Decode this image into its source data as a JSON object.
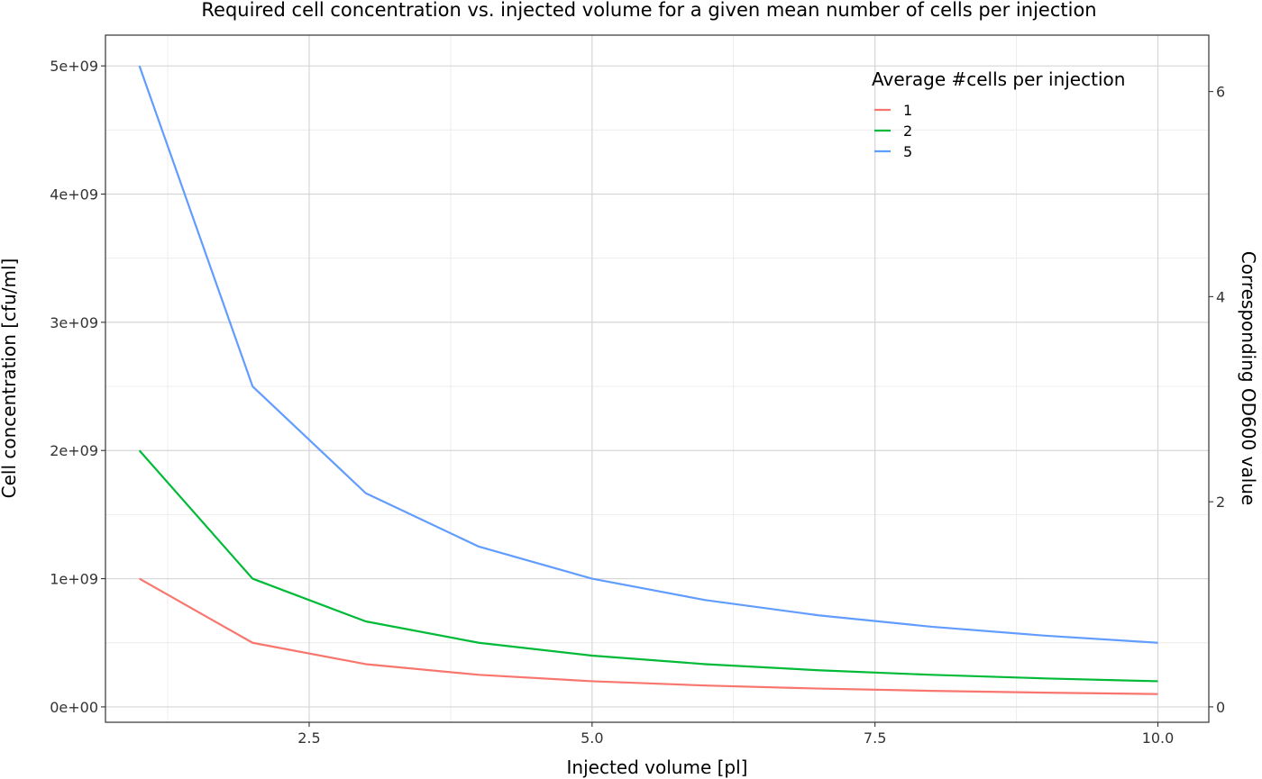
{
  "chart_data": {
    "type": "line",
    "title": "Required cell concentration vs. injected volume for a given mean number of cells per injection",
    "xlabel": "Injected volume [pl]",
    "ylabel": "Cell concentration [cfu/ml]",
    "y2label": "Corresponding OD600 value",
    "x": [
      1,
      2,
      3,
      4,
      5,
      6,
      7,
      8,
      9,
      10
    ],
    "xlim": [
      0.7,
      10.45
    ],
    "ylim": [
      -120000000.0,
      5240000000.0
    ],
    "y2lim": [
      -0.15,
      6.55
    ],
    "x_ticks": [
      2.5,
      5.0,
      7.5,
      10.0
    ],
    "x_tick_labels": [
      "2.5",
      "5.0",
      "7.5",
      "10.0"
    ],
    "y_ticks": [
      0,
      1000000000.0,
      2000000000.0,
      3000000000.0,
      4000000000.0,
      5000000000.0
    ],
    "y_tick_labels": [
      "0e+00",
      "1e+09",
      "2e+09",
      "3e+09",
      "4e+09",
      "5e+09"
    ],
    "y2_ticks": [
      0,
      2,
      4,
      6
    ],
    "y2_tick_labels": [
      "0",
      "2",
      "4",
      "6"
    ],
    "grid": true,
    "legend_title": "Average #cells per injection",
    "legend_position": "top-right inside",
    "series": [
      {
        "name": "1",
        "color": "#F8766D",
        "values": [
          1000000000.0,
          500000000.0,
          333300000.0,
          250000000.0,
          200000000.0,
          166700000.0,
          142900000.0,
          125000000.0,
          111100000.0,
          100000000.0
        ]
      },
      {
        "name": "2",
        "color": "#00BA38",
        "values": [
          2000000000.0,
          1000000000.0,
          666700000.0,
          500000000.0,
          400000000.0,
          333300000.0,
          285700000.0,
          250000000.0,
          222200000.0,
          200000000.0
        ]
      },
      {
        "name": "5",
        "color": "#619CFF",
        "values": [
          5000000000.0,
          2500000000.0,
          1667000000.0,
          1250000000.0,
          1000000000.0,
          833300000.0,
          714300000.0,
          625000000.0,
          555600000.0,
          500000000.0
        ]
      }
    ]
  }
}
